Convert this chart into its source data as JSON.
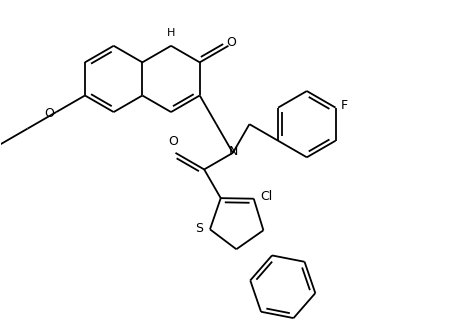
{
  "bg_color": "#ffffff",
  "line_color": "#000000",
  "lw": 1.3,
  "figsize": [
    4.62,
    3.35
  ],
  "dpi": 100,
  "xlim": [
    0,
    10
  ],
  "ylim": [
    0,
    7.25
  ]
}
